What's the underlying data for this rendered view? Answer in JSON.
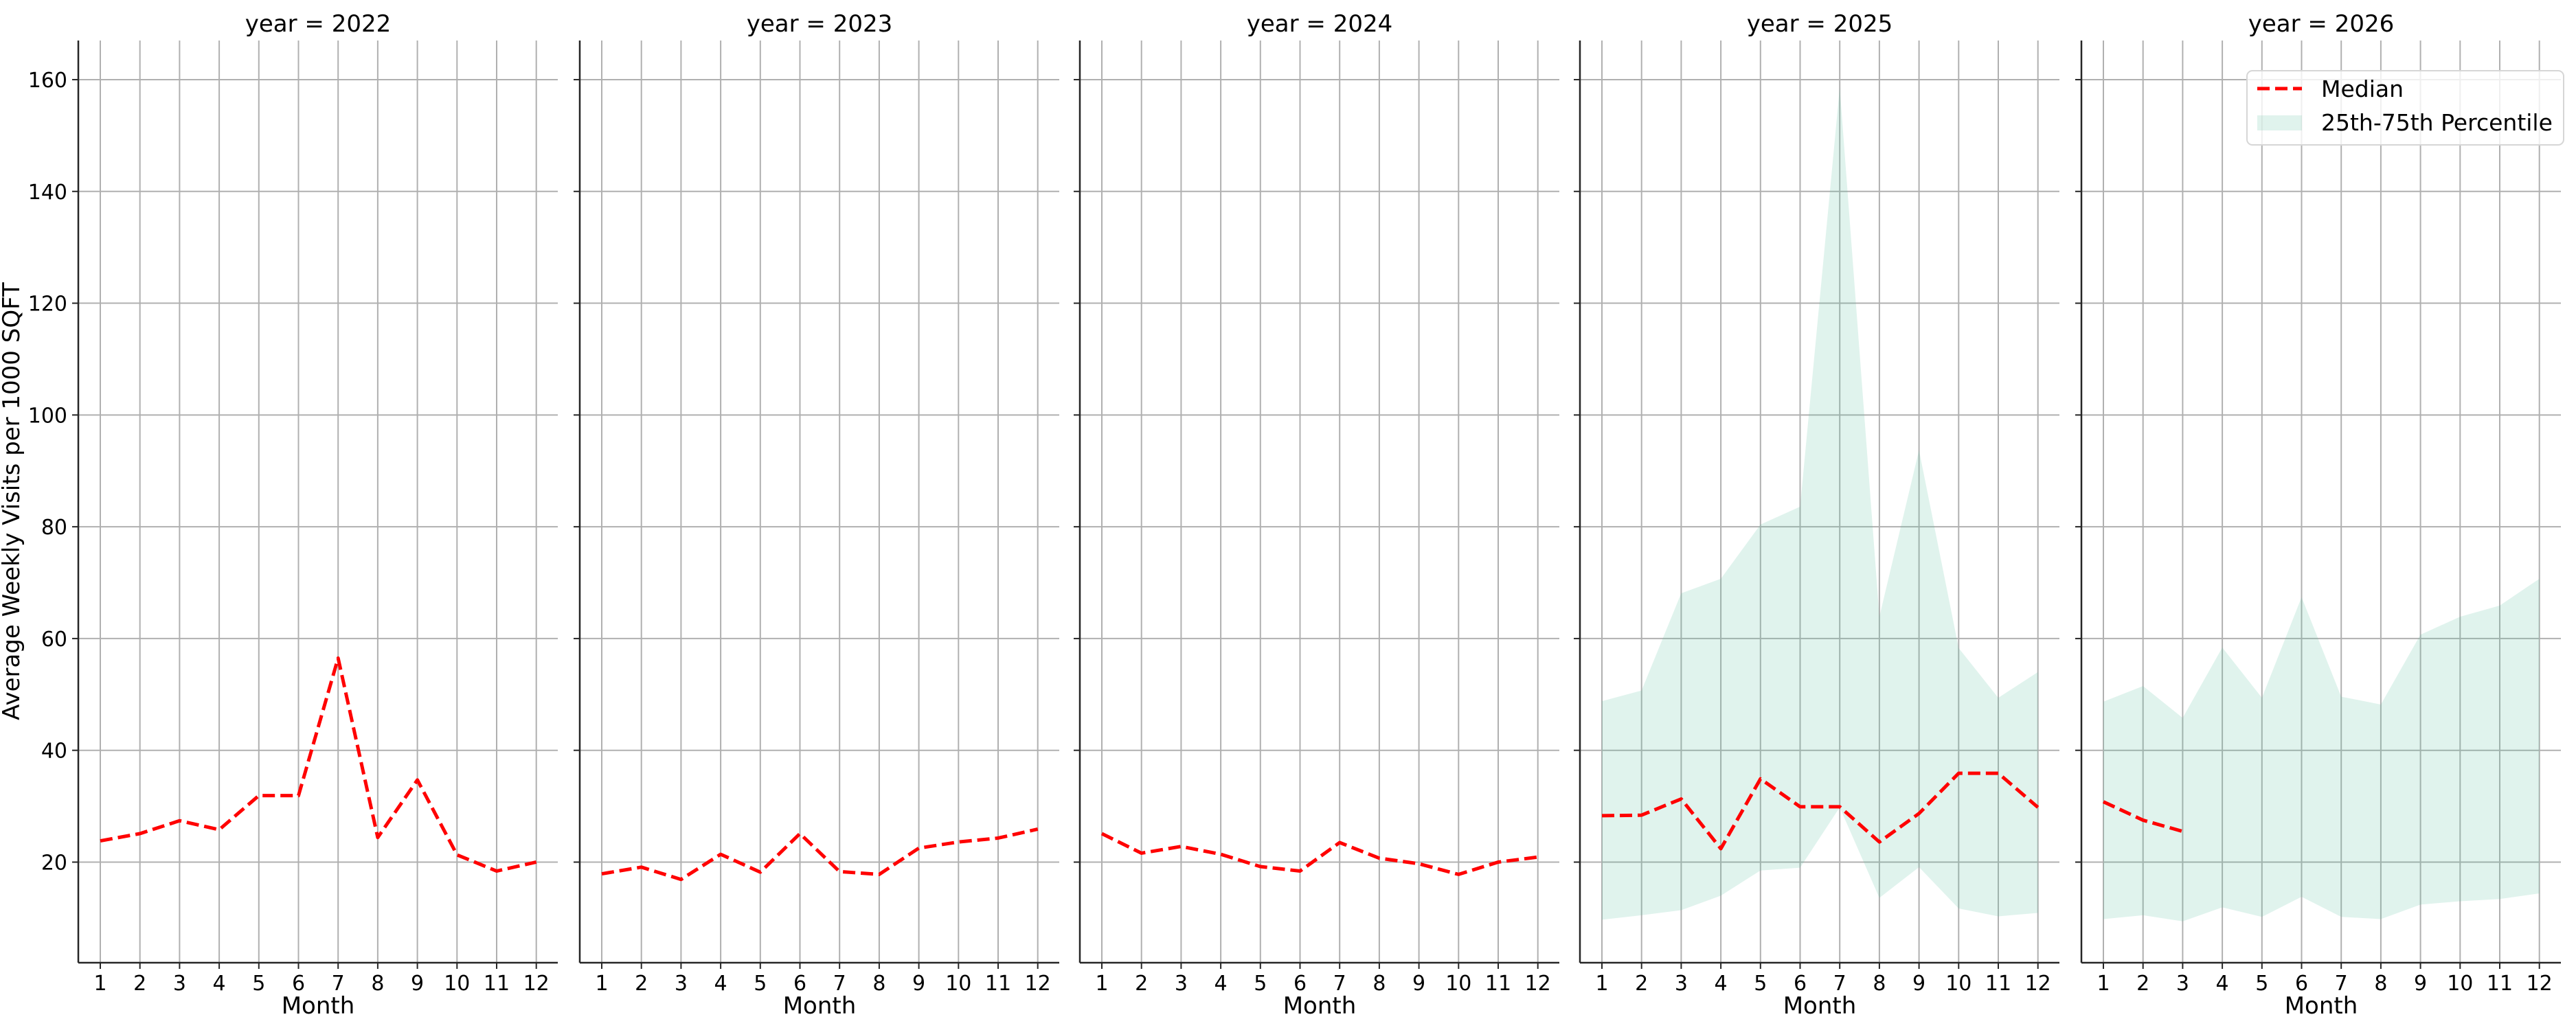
{
  "figure": {
    "ylabel": "Average Weekly Visits per 1000 SQFT",
    "xlabel": "Month"
  },
  "legend": {
    "median_label": "Median",
    "band_label": "25th-75th Percentile"
  },
  "colors": {
    "median": "#ff0000",
    "band": "#66c2a5",
    "band_alpha": 0.2,
    "grid": "#b0b0b0",
    "spine": "#262626"
  },
  "chart_data": {
    "type": "line",
    "title": "",
    "xlabel": "Month",
    "ylabel": "Average Weekly Visits per 1000 SQFT",
    "ylim": [
      2,
      167
    ],
    "yticks": [
      20,
      40,
      60,
      80,
      100,
      120,
      140,
      160
    ],
    "xticks": [
      1,
      2,
      3,
      4,
      5,
      6,
      7,
      8,
      9,
      10,
      11,
      12
    ],
    "grid": true,
    "shared_y": true,
    "legend_position": "upper right (last panel)",
    "panels": [
      {
        "title": "year = 2022",
        "median": [
          23.8,
          25.1,
          27.4,
          25.8,
          31.9,
          31.9,
          56.5,
          24.4,
          34.7,
          21.3,
          18.4,
          20.0
        ],
        "p25": null,
        "p75": null
      },
      {
        "title": "year = 2023",
        "median": [
          17.9,
          19.1,
          16.9,
          21.4,
          18.2,
          25.1,
          18.3,
          17.8,
          22.5,
          23.6,
          24.3,
          25.9
        ],
        "p25": null,
        "p75": null
      },
      {
        "title": "year = 2024",
        "median": [
          25.1,
          21.6,
          22.8,
          21.4,
          19.2,
          18.4,
          23.5,
          20.7,
          19.7,
          17.8,
          20.0,
          20.9
        ],
        "p25": null,
        "p75": null
      },
      {
        "title": "year = 2025",
        "median": [
          28.3,
          28.4,
          31.3,
          22.4,
          34.9,
          29.9,
          29.9,
          23.6,
          28.7,
          35.9,
          35.9,
          29.8
        ],
        "p25": [
          9.7,
          10.5,
          11.4,
          14.0,
          18.5,
          19.0,
          29.8,
          13.6,
          19.1,
          11.7,
          10.3,
          10.9
        ],
        "p75": [
          48.8,
          50.7,
          68.1,
          70.7,
          80.4,
          83.6,
          158.6,
          63.9,
          93.7,
          58.3,
          49.4,
          54.0
        ]
      },
      {
        "title": "year = 2026",
        "median": [
          30.8,
          27.5,
          25.5,
          null,
          null,
          null,
          null,
          null,
          null,
          null,
          null,
          null
        ],
        "p25": [
          9.8,
          10.5,
          9.4,
          11.9,
          10.2,
          13.8,
          10.2,
          9.8,
          12.4,
          13.0,
          13.4,
          14.4
        ],
        "p75": [
          48.7,
          51.5,
          45.8,
          58.4,
          49.4,
          67.4,
          49.6,
          48.2,
          60.7,
          63.9,
          65.9,
          70.7
        ]
      }
    ]
  }
}
